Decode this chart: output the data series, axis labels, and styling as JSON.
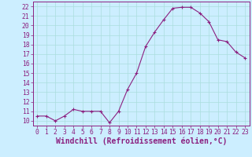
{
  "x": [
    0,
    1,
    2,
    3,
    4,
    5,
    6,
    7,
    8,
    9,
    10,
    11,
    12,
    13,
    14,
    15,
    16,
    17,
    18,
    19,
    20,
    21,
    22,
    23
  ],
  "y": [
    10.5,
    10.5,
    10.0,
    10.5,
    11.2,
    11.0,
    11.0,
    11.0,
    9.8,
    11.0,
    13.3,
    15.0,
    17.8,
    19.3,
    20.6,
    21.8,
    21.9,
    21.9,
    21.3,
    20.4,
    18.5,
    18.3,
    17.2,
    16.6
  ],
  "line_color": "#8b2080",
  "marker": "+",
  "marker_color": "#8b2080",
  "background_color": "#cceeff",
  "grid_color": "#aadddd",
  "xlabel": "Windchill (Refroidissement éolien,°C)",
  "xlim": [
    -0.5,
    23.5
  ],
  "ylim": [
    9.5,
    22.5
  ],
  "yticks": [
    10,
    11,
    12,
    13,
    14,
    15,
    16,
    17,
    18,
    19,
    20,
    21,
    22
  ],
  "xticks": [
    0,
    1,
    2,
    3,
    4,
    5,
    6,
    7,
    8,
    9,
    10,
    11,
    12,
    13,
    14,
    15,
    16,
    17,
    18,
    19,
    20,
    21,
    22,
    23
  ],
  "tick_color": "#8b2080",
  "axis_label_color": "#8b2080",
  "spine_color": "#8b2080",
  "font_size_ticks": 5.8,
  "font_size_xlabel": 7.0,
  "linewidth": 0.8,
  "markersize": 3.5
}
